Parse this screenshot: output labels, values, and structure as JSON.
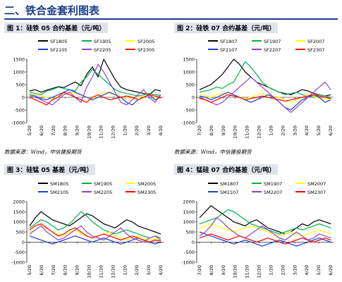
{
  "section_title": "二、铁合金套利图表",
  "figures": [
    {
      "label": "图 1：硅铁 05 合约基差（元/吨）"
    },
    {
      "label": "图 2：硅铁 07 合约基差（元/吨）"
    },
    {
      "label": "图 3：硅锰 05 基差（元/吨）"
    },
    {
      "label": "图 4：锰硅 07 合约基差（元/吨）"
    }
  ],
  "source_left": "数据来源：Wind，中信建投期货",
  "source_right": "数据来源：Wind，中信建投期货",
  "colors": {
    "black": "#000000",
    "green": "#00b050",
    "yellow": "#ffff00",
    "blue": "#1f3bd6",
    "purple": "#8e44c8",
    "red": "#ff0000",
    "accent": "#1a3c8c"
  },
  "chart_data": [
    {
      "type": "line",
      "ylim": [
        -1000,
        1500
      ],
      "yticks": [
        "1500",
        "1000",
        "500",
        "0",
        "-500",
        "-1000"
      ],
      "xticks": [
        "5/20",
        "6/20",
        "7/20",
        "8/20",
        "9/20",
        "10/20",
        "11/20",
        "12/20",
        "1/20",
        "2/20",
        "3/20",
        "4/20"
      ],
      "series": [
        {
          "name": "SF1805",
          "color": "#000000",
          "values": [
            250,
            300,
            200,
            280,
            350,
            420,
            380,
            500,
            600,
            450,
            900,
            1200,
            800,
            1500,
            1100,
            700,
            400,
            300,
            250,
            200,
            150,
            100,
            300,
            250
          ]
        },
        {
          "name": "SF1905",
          "color": "#00b050",
          "values": [
            200,
            150,
            100,
            250,
            300,
            400,
            350,
            300,
            250,
            600,
            800,
            1100,
            900,
            700,
            500,
            300,
            200,
            150,
            100,
            50,
            100,
            150,
            100,
            80
          ]
        },
        {
          "name": "SF2005",
          "color": "#ffff00",
          "values": [
            150,
            100,
            50,
            0,
            -100,
            50,
            100,
            200,
            150,
            100,
            0,
            -50,
            100,
            200,
            150,
            100,
            50,
            0,
            -50,
            0,
            50,
            100,
            0,
            -50
          ]
        },
        {
          "name": "SF2105",
          "color": "#1f3bd6",
          "values": [
            100,
            50,
            -50,
            -100,
            0,
            100,
            200,
            300,
            200,
            100,
            0,
            -100,
            0,
            100,
            200,
            100,
            0,
            -200,
            -300,
            -100,
            0,
            100,
            -100,
            0
          ]
        },
        {
          "name": "SF2205",
          "color": "#8e44c8",
          "values": [
            50,
            0,
            -100,
            -200,
            -300,
            -100,
            100,
            200,
            0,
            -200,
            400,
            800,
            1300,
            1000,
            600,
            200,
            -200,
            -300,
            -100,
            100,
            300,
            0,
            -200,
            100
          ]
        },
        {
          "name": "SF2305",
          "color": "#ff0000",
          "values": [
            0,
            -100,
            -200,
            -300,
            -100,
            0,
            200,
            100,
            0,
            -100,
            -200,
            0,
            100,
            0,
            -100,
            -50,
            0,
            50,
            0,
            -100,
            0,
            100,
            50,
            0
          ]
        }
      ]
    },
    {
      "type": "line",
      "ylim": [
        -1000,
        1500
      ],
      "yticks": [
        "1500",
        "1000",
        "500",
        "0",
        "-500",
        "-1000"
      ],
      "xticks": [
        "7/20",
        "8/20",
        "9/20",
        "10/20",
        "11/20",
        "12/20",
        "1/20",
        "2/20",
        "3/20",
        "4/20",
        "5/20",
        "6/20"
      ],
      "series": [
        {
          "name": "SF1807",
          "color": "#000000",
          "values": [
            300,
            400,
            500,
            700,
            900,
            1200,
            1500,
            1300,
            1000,
            800,
            600,
            500,
            400,
            300,
            200,
            150,
            100,
            200,
            300,
            250,
            150,
            100,
            50,
            100
          ]
        },
        {
          "name": "SF1907",
          "color": "#00b050",
          "values": [
            200,
            250,
            300,
            400,
            350,
            500,
            600,
            1000,
            1400,
            1200,
            900,
            600,
            400,
            300,
            200,
            100,
            150,
            200,
            100,
            50,
            0,
            100,
            50,
            0
          ]
        },
        {
          "name": "SF2007",
          "color": "#ffff00",
          "values": [
            100,
            50,
            0,
            100,
            150,
            100,
            50,
            0,
            -50,
            0,
            100,
            150,
            100,
            50,
            0,
            -100,
            -200,
            -100,
            0,
            100,
            50,
            -50,
            -100,
            -50
          ]
        },
        {
          "name": "SF2107",
          "color": "#1f3bd6",
          "values": [
            50,
            0,
            -100,
            0,
            100,
            200,
            100,
            0,
            -100,
            -200,
            -100,
            0,
            100,
            0,
            -200,
            -400,
            -500,
            -300,
            -100,
            0,
            100,
            0,
            -200,
            -100
          ]
        },
        {
          "name": "SF2207",
          "color": "#8e44c8",
          "values": [
            0,
            -100,
            -200,
            -300,
            -200,
            0,
            200,
            400,
            600,
            800,
            600,
            400,
            200,
            0,
            -200,
            -400,
            -600,
            -400,
            -200,
            0,
            200,
            400,
            600,
            300
          ]
        },
        {
          "name": "SF2307",
          "color": "#ff0000",
          "values": [
            -50,
            -100,
            -200,
            -100,
            0,
            100,
            50,
            0,
            -100,
            -50,
            0,
            50,
            0,
            -50,
            -100,
            -150,
            -100,
            -50,
            0,
            50,
            100,
            50,
            0,
            -50
          ]
        }
      ]
    },
    {
      "type": "line",
      "ylim": [
        -1000,
        2000
      ],
      "yticks": [
        "2000",
        "1500",
        "1000",
        "500",
        "0",
        "-500",
        "-1000"
      ],
      "xticks": [
        "5/20",
        "6/20",
        "7/20",
        "8/20",
        "9/20",
        "10/20",
        "11/20",
        "12/20",
        "1/20",
        "2/20",
        "3/20",
        "4/20"
      ],
      "series": [
        {
          "name": "SM1805",
          "color": "#000000",
          "values": [
            800,
            1200,
            1500,
            1300,
            1100,
            1000,
            900,
            800,
            1000,
            1200,
            1400,
            1300,
            1100,
            900,
            800,
            700,
            900,
            1100,
            1000,
            800,
            700,
            600,
            500,
            400
          ]
        },
        {
          "name": "SM1905",
          "color": "#00b050",
          "values": [
            700,
            900,
            1100,
            1000,
            800,
            600,
            700,
            900,
            1200,
            1500,
            1300,
            1000,
            800,
            600,
            500,
            400,
            500,
            600,
            500,
            400,
            300,
            200,
            300,
            200
          ]
        },
        {
          "name": "SM2005",
          "color": "#ffff00",
          "values": [
            500,
            600,
            800,
            700,
            500,
            400,
            300,
            500,
            600,
            400,
            300,
            200,
            300,
            400,
            500,
            300,
            200,
            100,
            200,
            300,
            200,
            100,
            150,
            100
          ]
        },
        {
          "name": "SM2105",
          "color": "#1f3bd6",
          "values": [
            300,
            200,
            100,
            0,
            -100,
            0,
            100,
            200,
            300,
            200,
            100,
            0,
            100,
            200,
            100,
            0,
            -100,
            0,
            100,
            200,
            100,
            0,
            -100,
            0
          ]
        },
        {
          "name": "SM2205",
          "color": "#8e44c8",
          "values": [
            400,
            600,
            800,
            500,
            300,
            100,
            200,
            400,
            600,
            800,
            500,
            300,
            200,
            100,
            300,
            500,
            700,
            400,
            200,
            100,
            0,
            200,
            300,
            100
          ]
        },
        {
          "name": "SM2305",
          "color": "#ff0000",
          "values": [
            600,
            800,
            900,
            700,
            500,
            300,
            400,
            600,
            700,
            500,
            300,
            200,
            300,
            400,
            300,
            200,
            100,
            200,
            300,
            200,
            100,
            0,
            100,
            50
          ]
        }
      ]
    },
    {
      "type": "line",
      "ylim": [
        -1000,
        2000
      ],
      "yticks": [
        "2000",
        "1500",
        "1000",
        "500",
        "0",
        "-500",
        "-1000"
      ],
      "xticks": [
        "7/20",
        "8/20",
        "9/20",
        "10/20",
        "11/20",
        "12/20",
        "1/20",
        "2/20",
        "3/20",
        "4/20",
        "5/20",
        "6/20"
      ],
      "series": [
        {
          "name": "SM1807",
          "color": "#000000",
          "values": [
            1200,
            1500,
            1800,
            1600,
            1400,
            1200,
            1000,
            900,
            800,
            1000,
            1100,
            900,
            700,
            600,
            500,
            400,
            500,
            700,
            900,
            800,
            1000,
            1100,
            1000,
            900
          ]
        },
        {
          "name": "SM1907",
          "color": "#00b050",
          "values": [
            900,
            1000,
            1100,
            1200,
            1400,
            1600,
            1500,
            1300,
            1100,
            900,
            800,
            700,
            600,
            500,
            400,
            500,
            600,
            700,
            600,
            700,
            800,
            900,
            800,
            700
          ]
        },
        {
          "name": "SM2007",
          "color": "#ffff00",
          "values": [
            700,
            800,
            900,
            800,
            700,
            600,
            500,
            600,
            700,
            800,
            700,
            600,
            500,
            400,
            300,
            400,
            500,
            400,
            300,
            400,
            500,
            600,
            500,
            400
          ]
        },
        {
          "name": "SM2107",
          "color": "#1f3bd6",
          "values": [
            500,
            400,
            300,
            200,
            100,
            0,
            -100,
            0,
            100,
            0,
            -100,
            -200,
            -100,
            0,
            100,
            0,
            -100,
            -200,
            -100,
            0,
            100,
            200,
            100,
            0
          ]
        },
        {
          "name": "SM2207",
          "color": "#8e44c8",
          "values": [
            300,
            500,
            800,
            1200,
            1000,
            700,
            500,
            300,
            200,
            400,
            600,
            800,
            600,
            400,
            200,
            100,
            300,
            500,
            300,
            100,
            200,
            400,
            300,
            200
          ]
        },
        {
          "name": "SM2307",
          "color": "#ff0000",
          "values": [
            200,
            300,
            400,
            300,
            200,
            100,
            200,
            300,
            200,
            100,
            0,
            100,
            200,
            100,
            0,
            -100,
            0,
            100,
            200,
            100,
            0,
            100,
            200,
            100
          ]
        }
      ]
    }
  ]
}
